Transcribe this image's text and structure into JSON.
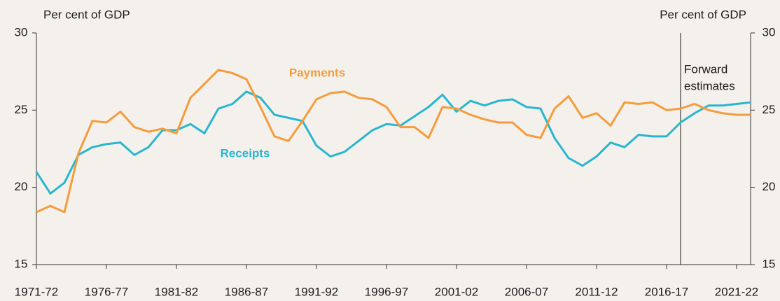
{
  "chart_data": {
    "type": "line",
    "y_label": "Per cent of GDP",
    "y2_label": "Per cent of GDP",
    "categories": [
      "1971-72",
      null,
      null,
      null,
      null,
      "1976-77",
      null,
      null,
      null,
      null,
      "1981-82",
      null,
      null,
      null,
      null,
      "1986-87",
      null,
      null,
      null,
      null,
      "1991-92",
      null,
      null,
      null,
      null,
      "1996-97",
      null,
      null,
      null,
      null,
      "2001-02",
      null,
      null,
      null,
      null,
      "2006-07",
      null,
      null,
      null,
      null,
      "2011-12",
      null,
      null,
      null,
      null,
      "2016-17",
      null,
      null,
      null,
      null,
      "2021-22",
      null
    ],
    "series": [
      {
        "name": "Receipts",
        "color": "#29b6cf",
        "values": [
          21.0,
          19.6,
          20.3,
          22.1,
          22.6,
          22.8,
          22.9,
          22.1,
          22.6,
          23.7,
          23.7,
          24.1,
          23.5,
          25.1,
          25.4,
          26.2,
          25.8,
          24.7,
          24.5,
          24.3,
          22.7,
          22.0,
          22.3,
          23.0,
          23.7,
          24.1,
          24.0,
          24.6,
          25.2,
          26.0,
          24.9,
          25.6,
          25.3,
          25.6,
          25.7,
          25.2,
          25.1,
          23.2,
          21.9,
          21.4,
          22.0,
          22.9,
          22.6,
          23.4,
          23.3,
          23.3,
          24.2,
          24.8,
          25.3,
          25.3,
          25.4,
          25.5
        ]
      },
      {
        "name": "Payments",
        "color": "#f59c3c",
        "values": [
          18.4,
          18.8,
          18.4,
          22.2,
          24.3,
          24.2,
          24.9,
          23.9,
          23.6,
          23.8,
          23.5,
          25.8,
          26.7,
          27.6,
          27.4,
          27.0,
          25.2,
          23.3,
          23.0,
          24.3,
          25.7,
          26.1,
          26.2,
          25.8,
          25.7,
          25.2,
          23.9,
          23.9,
          23.2,
          25.2,
          25.1,
          24.7,
          24.4,
          24.2,
          24.2,
          23.4,
          23.2,
          25.1,
          25.9,
          24.5,
          24.8,
          24.0,
          25.5,
          25.4,
          25.5,
          25.0,
          25.1,
          25.4,
          25.0,
          24.8,
          24.7,
          24.7
        ]
      }
    ],
    "ylim": [
      15,
      30
    ],
    "yticks": [
      15,
      20,
      25,
      30
    ],
    "y2lim": [
      15,
      30
    ],
    "y2ticks": [
      15,
      20,
      25,
      30
    ],
    "vline_at": 46,
    "vline_label": [
      "Forward",
      "estimates"
    ],
    "grid": false
  }
}
